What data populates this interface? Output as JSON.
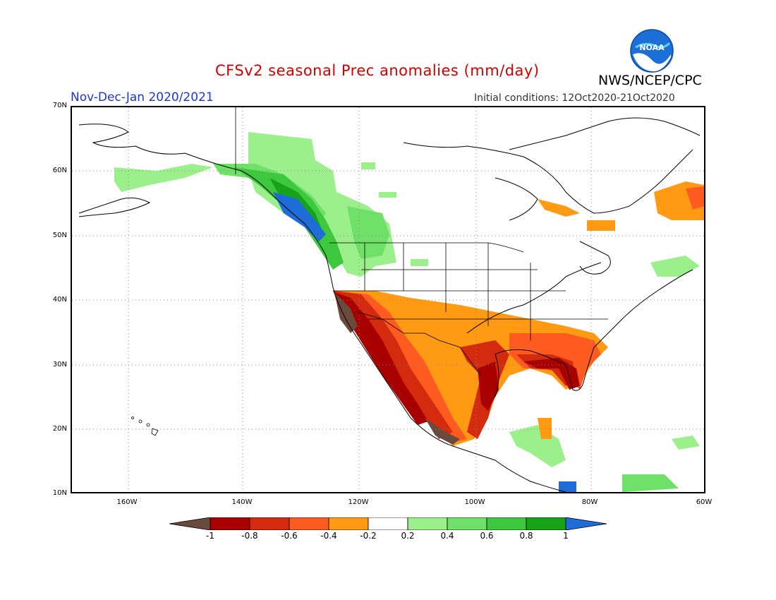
{
  "header": {
    "title": "CFSv2 seasonal Prec anomalies (mm/day)",
    "period": "Nov-Dec-Jan 2020/2021",
    "initial_conditions": "Initial conditions: 12Oct2020-21Oct2020",
    "organization": "NWS/NCEP/CPC",
    "logo_text": "NOAA"
  },
  "map": {
    "lat_labels": [
      "70N",
      "60N",
      "50N",
      "40N",
      "30N",
      "20N",
      "10N"
    ],
    "lon_labels": [
      "160W",
      "140W",
      "120W",
      "100W",
      "80W",
      "60W"
    ],
    "colors": {
      "drier_1": "#6b4a3e",
      "drier_08": "#a80000",
      "drier_06": "#d42a0e",
      "drier_04": "#ff5a1f",
      "drier_02": "#ff9a12",
      "neutral": "#ffffff",
      "wetter_02": "#9cf08c",
      "wetter_04": "#6fe068",
      "wetter_06": "#3ec83e",
      "wetter_08": "#17a317",
      "wetter_1": "#1e6cd8"
    }
  },
  "colorbar": {
    "labels": [
      "-1",
      "-0.8",
      "-0.6",
      "-0.4",
      "-0.2",
      "0.2",
      "0.4",
      "0.6",
      "0.8",
      "1"
    ],
    "colors": [
      "#6b4a3e",
      "#a80000",
      "#d42a0e",
      "#ff5a1f",
      "#ff9a12",
      "#ffffff",
      "#9cf08c",
      "#6fe068",
      "#3ec83e",
      "#17a317",
      "#1e6cd8"
    ]
  }
}
